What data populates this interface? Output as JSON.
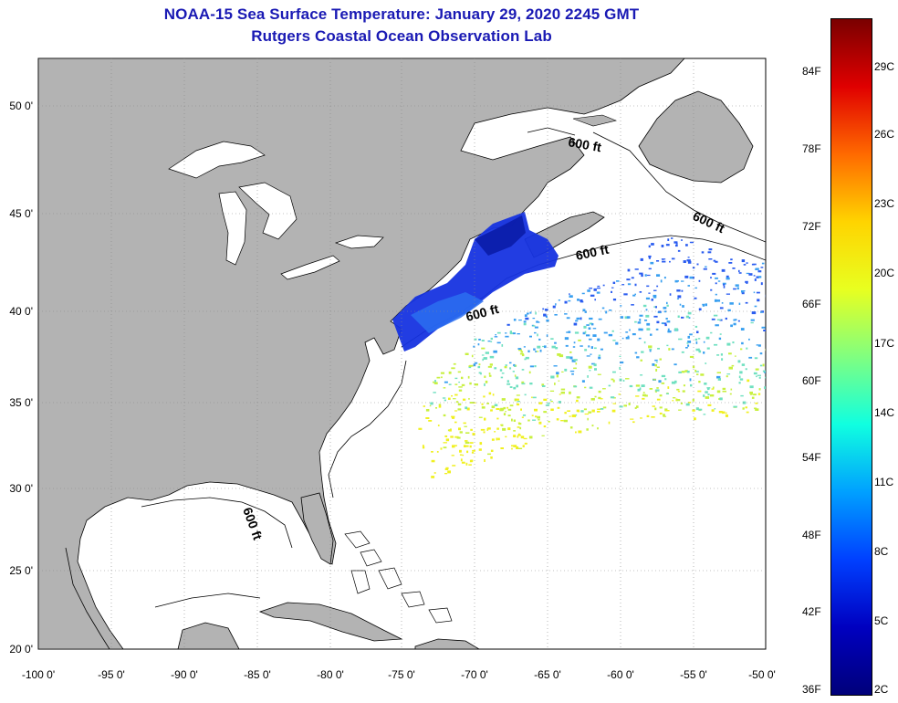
{
  "title": {
    "line1": "NOAA-15 Sea Surface Temperature:  January 29, 2020 2245 GMT",
    "line2": "Rutgers Coastal Ocean Observation Lab"
  },
  "map": {
    "lon_range": [
      -100,
      -50
    ],
    "lat_range": [
      20,
      52.5
    ],
    "lon_ticks": [
      "-100 0'",
      "-95 0'",
      "-90 0'",
      "-85 0'",
      "-80 0'",
      "-75 0'",
      "-70 0'",
      "-65 0'",
      "-60 0'",
      "-55 0'",
      "-50 0'"
    ],
    "lat_ticks": [
      "50 0'",
      "45 0'",
      "40 0'",
      "35 0'",
      "30 0'",
      "25 0'",
      "20 0'"
    ],
    "contour_labels": [
      "600 ft",
      "600 ft",
      "600 ft",
      "600 ft",
      "600 ft"
    ],
    "colors": {
      "land": "#b3b3b3",
      "ocean": "#ffffff",
      "grid": "#888888"
    }
  },
  "colorbar": {
    "fahrenheit_labels": [
      "84F",
      "78F",
      "72F",
      "66F",
      "60F",
      "54F",
      "48F",
      "42F",
      "36F"
    ],
    "celsius_labels": [
      "29C",
      "26C",
      "23C",
      "20C",
      "17C",
      "14C",
      "11C",
      "8C",
      "5C",
      "2C"
    ],
    "colors": [
      "#7a0000",
      "#e00000",
      "#ff6a00",
      "#ffd400",
      "#e8ff20",
      "#80ff80",
      "#10ffe0",
      "#00a0ff",
      "#0040ff",
      "#0000c0",
      "#00007a"
    ]
  }
}
